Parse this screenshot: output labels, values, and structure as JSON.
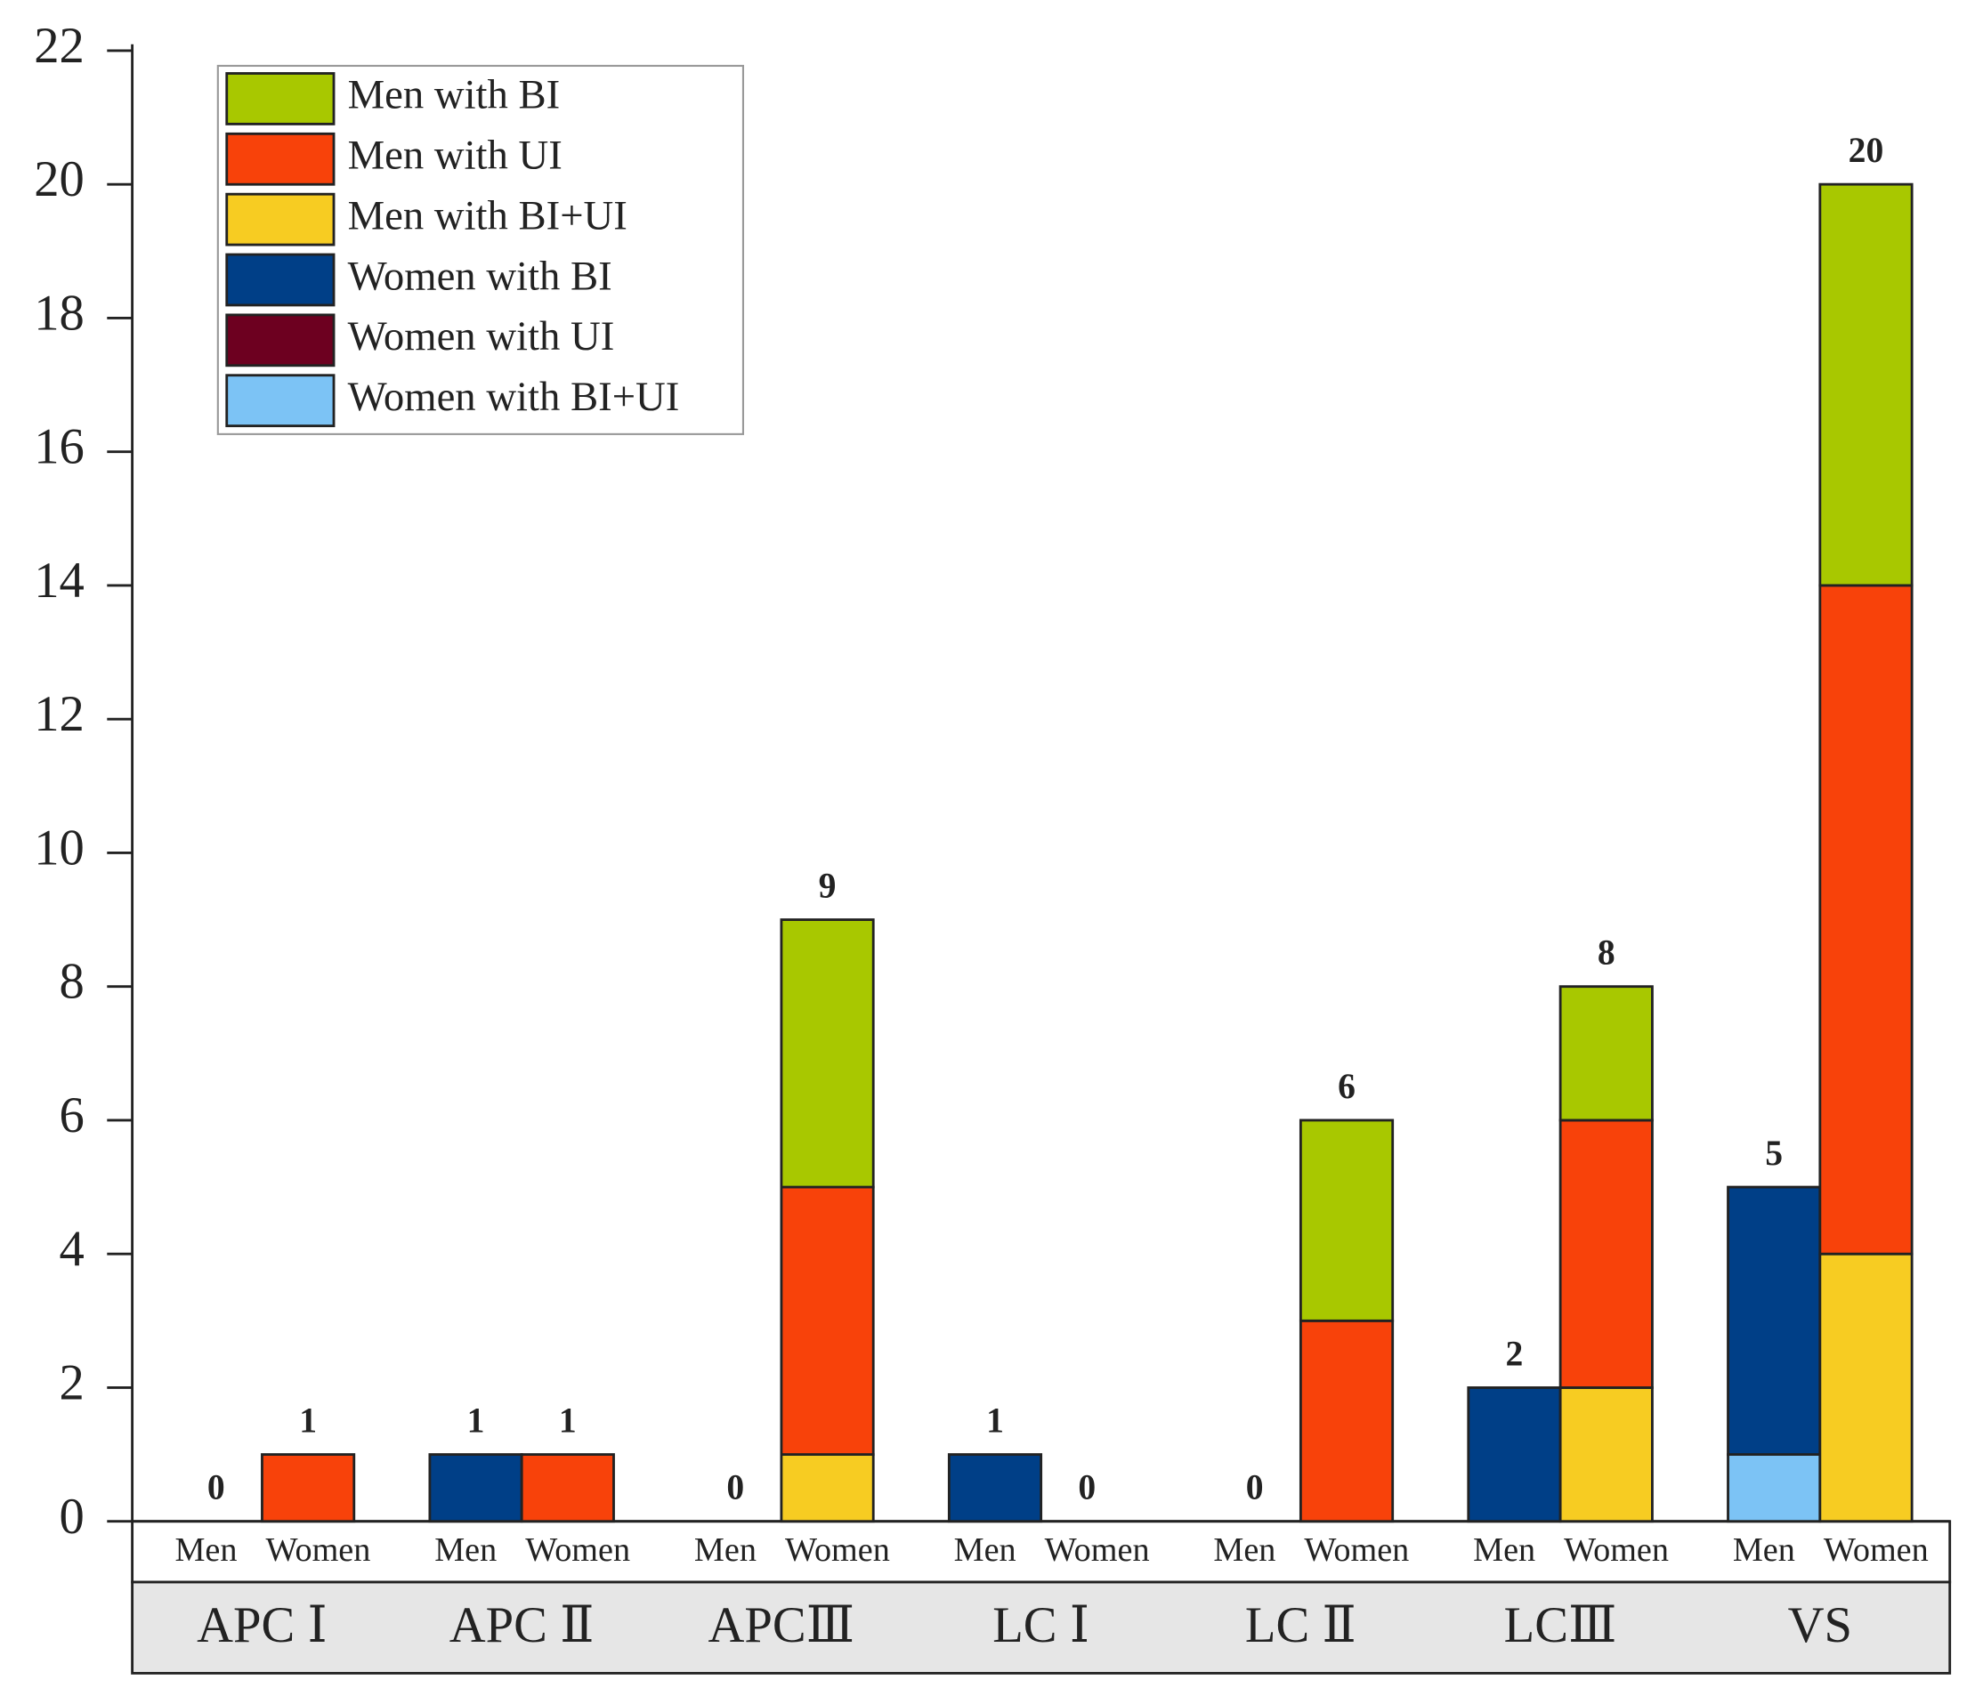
{
  "chart_data": {
    "type": "stacked-grouped-bar",
    "categories": [
      "APC Ⅰ",
      "APC Ⅱ",
      "APCⅢ",
      "LC Ⅰ",
      "LC Ⅱ",
      "LCⅢ",
      "VS"
    ],
    "subcategories": [
      "Men",
      "Women"
    ],
    "series": [
      {
        "name": "Men with BI",
        "color": "#a8c800",
        "stack": 1,
        "values": [
          0,
          0,
          4,
          0,
          3,
          2,
          6
        ]
      },
      {
        "name": "Men with UI",
        "color": "#f8420a",
        "stack": 1,
        "values": [
          1,
          1,
          4,
          0,
          3,
          4,
          10
        ]
      },
      {
        "name": "Men with BI+UI",
        "color": "#f7cc22",
        "stack": 1,
        "values": [
          0,
          0,
          1,
          0,
          0,
          2,
          4
        ]
      },
      {
        "name": "Women with BI",
        "color": "#003f87",
        "stack": 0,
        "values": [
          0,
          1,
          0,
          1,
          0,
          2,
          4
        ]
      },
      {
        "name": "Women with UI",
        "color": "#6d0020",
        "stack": 0,
        "values": [
          0,
          0,
          0,
          0,
          0,
          0,
          0
        ]
      },
      {
        "name": "Women with BI+UI",
        "color": "#7cc3f5",
        "stack": 0,
        "values": [
          0,
          0,
          0,
          0,
          0,
          0,
          1
        ]
      }
    ],
    "stack_totals": [
      [
        0,
        1,
        0,
        1,
        0,
        2,
        5
      ],
      [
        1,
        1,
        9,
        0,
        6,
        8,
        20
      ]
    ],
    "ylim": [
      0,
      22
    ],
    "yticks": [
      0,
      2,
      4,
      6,
      8,
      10,
      12,
      14,
      16,
      18,
      20,
      22
    ],
    "legend": "upper left"
  }
}
